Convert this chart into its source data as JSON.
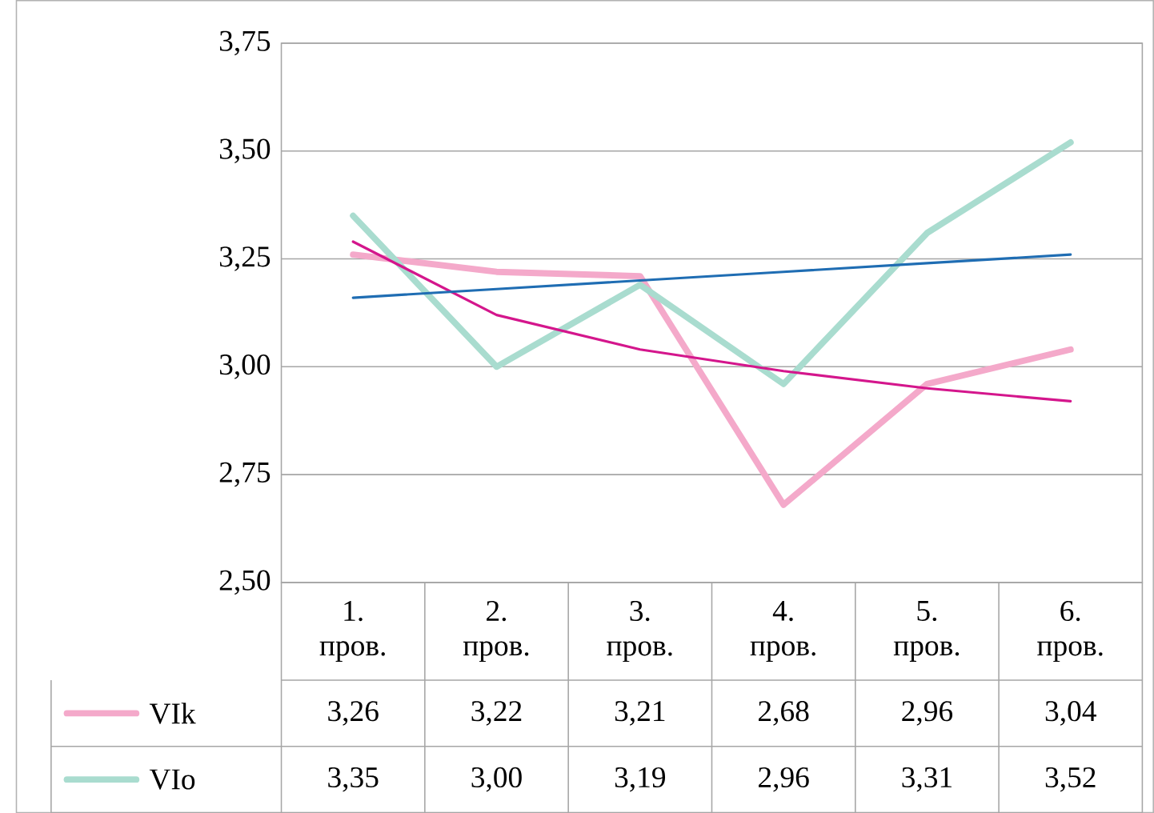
{
  "chart_data": {
    "type": "line",
    "categories": [
      "1. пров.",
      "2. пров.",
      "3. пров.",
      "4. пров.",
      "5. пров.",
      "6. пров."
    ],
    "series": [
      {
        "name": "VIk",
        "color": "#f4a9ca",
        "values": [
          3.26,
          3.22,
          3.21,
          2.68,
          2.96,
          3.04
        ],
        "value_labels": [
          "3,26",
          "3,22",
          "3,21",
          "2,68",
          "2,96",
          "3,04"
        ]
      },
      {
        "name": "VIo",
        "color": "#a9dccf",
        "values": [
          3.35,
          3.0,
          3.19,
          2.96,
          3.31,
          3.52
        ],
        "value_labels": [
          "3,35",
          "3,00",
          "3,19",
          "2,96",
          "3,31",
          "3,52"
        ]
      },
      {
        "color": "#d4168c",
        "values": [
          3.29,
          3.12,
          3.04,
          2.99,
          2.95,
          2.92
        ]
      },
      {
        "color": "#1f6db3",
        "values": [
          3.16,
          3.18,
          3.2,
          3.22,
          3.24,
          3.26
        ]
      }
    ],
    "ylim": [
      2.5,
      3.75
    ],
    "yticks": [
      {
        "value": 2.5,
        "label": "2,50"
      },
      {
        "value": 2.75,
        "label": "2,75"
      },
      {
        "value": 3.0,
        "label": "3,00"
      },
      {
        "value": 3.25,
        "label": "3,25"
      },
      {
        "value": 3.5,
        "label": "3,50"
      },
      {
        "value": 3.75,
        "label": "3,75"
      }
    ],
    "grid": "y",
    "legend": "bottom",
    "marker": "none",
    "line_style": "solid"
  }
}
